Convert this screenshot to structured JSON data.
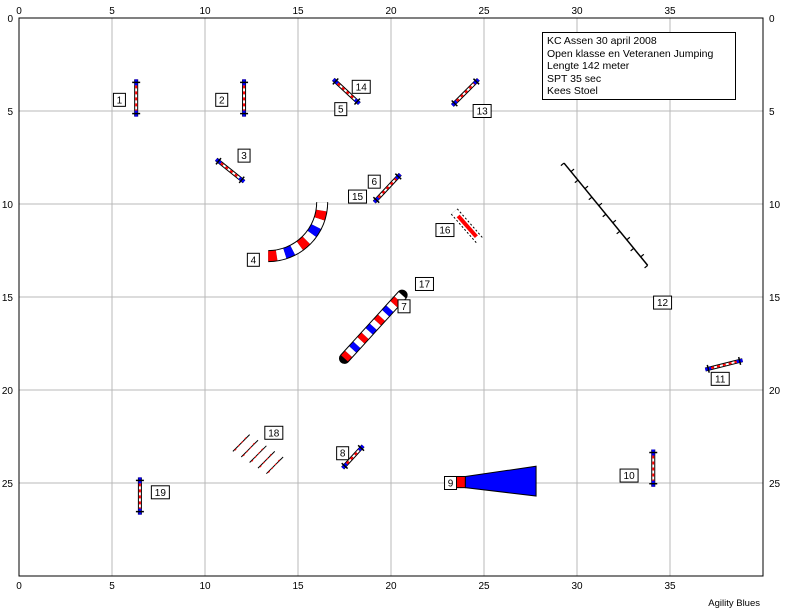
{
  "info": {
    "title": "KC Assen 30 april 2008",
    "class": "Open klasse en Veteranen Jumping",
    "length": "Lengte 142 meter",
    "spt": "SPT 35 sec",
    "judge": "Kees Stoel"
  },
  "footer": "Agility Blues",
  "axes": {
    "x_ticks": [
      0,
      5,
      10,
      15,
      20,
      25,
      30,
      35
    ],
    "y_ticks": [
      0,
      5,
      10,
      15,
      20,
      25
    ]
  },
  "colors": {
    "blue": "#0000ff",
    "red": "#ff0000",
    "grid": "#b8b8b8"
  },
  "obstacles": [
    {
      "id": "jump-1",
      "type": "jump",
      "a": [
        6.3,
        3.3
      ],
      "b": [
        6.3,
        5.3
      ]
    },
    {
      "id": "jump-2",
      "type": "jump",
      "a": [
        12.1,
        3.3
      ],
      "b": [
        12.1,
        5.3
      ]
    },
    {
      "id": "jump-3",
      "type": "jump",
      "a": [
        10.6,
        7.6
      ],
      "b": [
        12.1,
        8.8
      ]
    },
    {
      "id": "jump-5-14",
      "type": "jump",
      "a": [
        16.9,
        3.3
      ],
      "b": [
        18.3,
        4.6
      ]
    },
    {
      "id": "jump-13",
      "type": "jump",
      "a": [
        23.3,
        4.7
      ],
      "b": [
        24.7,
        3.3
      ]
    },
    {
      "id": "jump-6-15",
      "type": "jump",
      "a": [
        19.1,
        9.9
      ],
      "b": [
        20.5,
        8.4
      ]
    },
    {
      "id": "tire-16",
      "type": "tire",
      "a": [
        23.4,
        10.4
      ],
      "b": [
        24.8,
        12.0
      ]
    },
    {
      "id": "weave-12",
      "type": "weave",
      "a": [
        29.3,
        7.8
      ],
      "b": [
        33.8,
        13.3
      ]
    },
    {
      "id": "tunnel-4",
      "type": "curved-tunnel"
    },
    {
      "id": "tunnel-7-17",
      "type": "tunnel",
      "a": [
        17.5,
        18.3
      ],
      "b": [
        20.6,
        14.9
      ]
    },
    {
      "id": "jump-11",
      "type": "jump",
      "a": [
        36.9,
        18.9
      ],
      "b": [
        38.9,
        18.4
      ]
    },
    {
      "id": "long-jump-18",
      "type": "long-jump"
    },
    {
      "id": "jump-8",
      "type": "jump",
      "a": [
        17.4,
        24.2
      ],
      "b": [
        18.5,
        23.0
      ]
    },
    {
      "id": "chute-9",
      "type": "chute"
    },
    {
      "id": "jump-10",
      "type": "jump",
      "a": [
        34.1,
        23.2
      ],
      "b": [
        34.1,
        25.2
      ]
    },
    {
      "id": "jump-19",
      "type": "jump",
      "a": [
        6.5,
        24.7
      ],
      "b": [
        6.5,
        26.7
      ]
    }
  ],
  "labels": [
    {
      "text": "1",
      "at": [
        5.4,
        4.4
      ]
    },
    {
      "text": "2",
      "at": [
        10.9,
        4.4
      ]
    },
    {
      "text": "3",
      "at": [
        12.1,
        7.4
      ]
    },
    {
      "text": "4",
      "at": [
        12.6,
        13.0
      ]
    },
    {
      "text": "5",
      "at": [
        17.3,
        4.9
      ]
    },
    {
      "text": "14",
      "at": [
        18.4,
        3.7
      ]
    },
    {
      "text": "13",
      "at": [
        24.9,
        5.0
      ]
    },
    {
      "text": "6",
      "at": [
        19.1,
        8.8
      ]
    },
    {
      "text": "15",
      "at": [
        18.2,
        9.6
      ]
    },
    {
      "text": "16",
      "at": [
        22.9,
        11.4
      ]
    },
    {
      "text": "12",
      "at": [
        34.6,
        15.3
      ]
    },
    {
      "text": "7",
      "at": [
        20.7,
        15.5
      ]
    },
    {
      "text": "17",
      "at": [
        21.8,
        14.3
      ]
    },
    {
      "text": "11",
      "at": [
        37.7,
        19.4
      ]
    },
    {
      "text": "18",
      "at": [
        13.7,
        22.3
      ]
    },
    {
      "text": "8",
      "at": [
        17.4,
        23.4
      ]
    },
    {
      "text": "9",
      "at": [
        23.2,
        25.0
      ]
    },
    {
      "text": "10",
      "at": [
        32.8,
        24.6
      ]
    },
    {
      "text": "19",
      "at": [
        7.6,
        25.5
      ]
    }
  ]
}
